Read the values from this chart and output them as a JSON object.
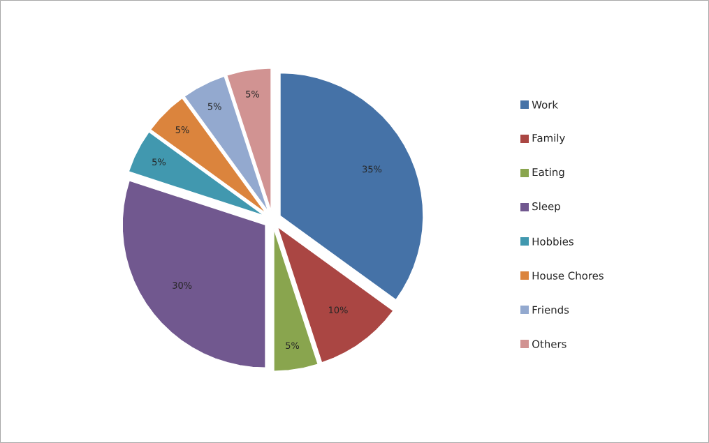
{
  "chart_data": {
    "type": "pie",
    "categories": [
      "Work",
      "Family",
      "Eating",
      "Sleep",
      "Hobbies",
      "House Chores",
      "Friends",
      "Others"
    ],
    "values": [
      35,
      10,
      5,
      30,
      5,
      5,
      5,
      5
    ],
    "colors": [
      "#4572a7",
      "#aa4643",
      "#89a54e",
      "#71588f",
      "#4198af",
      "#db843d",
      "#93a9cf",
      "#d19392"
    ],
    "value_labels": [
      "35%",
      "10%",
      "5%",
      "30%",
      "5%",
      "5%",
      "5%",
      "5%"
    ],
    "legend": "right"
  }
}
